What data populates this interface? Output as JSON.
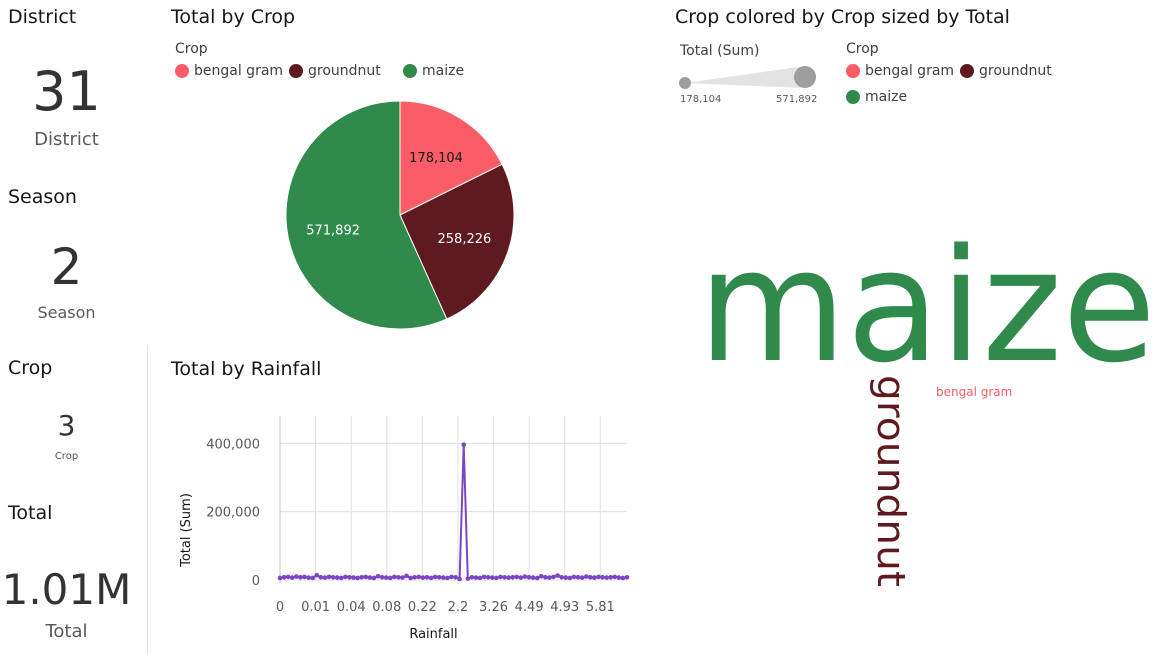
{
  "kpis": [
    {
      "title": "District",
      "value": "31",
      "label": "District"
    },
    {
      "title": "Season",
      "value": "2",
      "label": "Season"
    },
    {
      "title": "Crop",
      "value": "3",
      "label": "Crop"
    },
    {
      "title": "Total",
      "value": "1.01M",
      "label": "Total"
    }
  ],
  "pie_panel": {
    "title": "Total by Crop",
    "legend_title": "Crop",
    "legend": [
      {
        "label": "bengal gram",
        "color": "#fa5d67"
      },
      {
        "label": "groundnut",
        "color": "#5e1a1e"
      },
      {
        "label": "maize",
        "color": "#2f8a4c"
      }
    ]
  },
  "line_panel": {
    "title": "Total by Rainfall"
  },
  "word_panel": {
    "title": "Crop colored by Crop sized by Total",
    "size_legend_title": "Total (Sum)",
    "size_min": "178,104",
    "size_max": "571,892",
    "color_legend_title": "Crop",
    "color_legend": [
      {
        "label": "bengal gram",
        "color": "#fa5d67"
      },
      {
        "label": "groundnut",
        "color": "#5e1a1e"
      },
      {
        "label": "maize",
        "color": "#2f8a4c"
      }
    ],
    "words": {
      "maize": "maize",
      "groundnut": "groundnut",
      "bengal_gram": "bengal gram"
    }
  },
  "chart_data": [
    {
      "type": "pie",
      "title": "Total by Crop",
      "legend_title": "Crop",
      "categories": [
        "bengal gram",
        "groundnut",
        "maize"
      ],
      "values": [
        178104,
        258226,
        571892
      ],
      "labels": [
        "178,104",
        "258,226",
        "571,892"
      ],
      "colors": [
        "#fa5d67",
        "#5e1a1e",
        "#2f8a4c"
      ]
    },
    {
      "type": "line",
      "title": "Total by Rainfall",
      "xlabel": "Rainfall",
      "ylabel": "Total (Sum)",
      "ylim": [
        0,
        480000
      ],
      "y_ticks": [
        "0",
        "200,000",
        "400,000"
      ],
      "y_tick_values": [
        0,
        200000,
        400000
      ],
      "x_tick_labels": [
        "0",
        "0.01",
        "0.04",
        "0.08",
        "0.22",
        "2.2",
        "3.26",
        "4.49",
        "4.93",
        "5.81"
      ],
      "color": "#7c45c4",
      "values": [
        6000,
        8000,
        9000,
        7000,
        10000,
        8000,
        9000,
        7000,
        6000,
        14000,
        8000,
        7000,
        9000,
        8000,
        7000,
        6000,
        9000,
        8000,
        7000,
        6000,
        8000,
        9000,
        7000,
        6000,
        11000,
        8000,
        7000,
        6000,
        9000,
        8000,
        7000,
        12000,
        6000,
        8000,
        9000,
        7000,
        8000,
        6000,
        9000,
        8000,
        7000,
        6000,
        9000,
        8000,
        3000,
        396000,
        4000,
        8000,
        7000,
        6000,
        9000,
        8000,
        7000,
        6000,
        9000,
        8000,
        7000,
        8000,
        9000,
        7000,
        10000,
        8000,
        7000,
        6000,
        11000,
        8000,
        7000,
        9000,
        13000,
        8000,
        7000,
        6000,
        9000,
        8000,
        7000,
        10000,
        8000,
        7000,
        9000,
        8000,
        7000,
        8000,
        9000,
        7000,
        6000,
        8000
      ]
    }
  ]
}
